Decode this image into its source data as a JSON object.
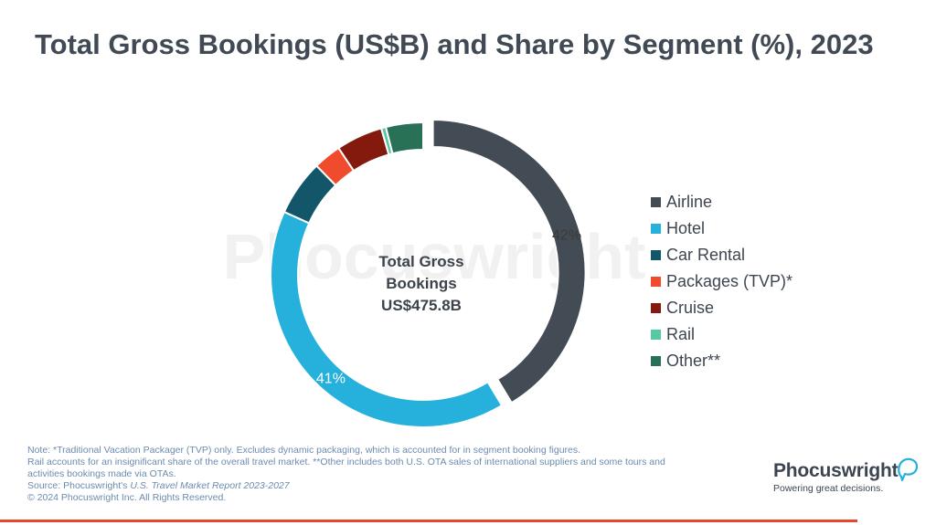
{
  "title": "Total Gross Bookings (US$B) and Share by Segment (%), 2023",
  "watermark": "Phocuswright",
  "center_label": [
    "Total Gross",
    "Bookings",
    "US$475.8B"
  ],
  "chart_data": {
    "type": "pie",
    "title": "Total Gross Bookings (US$B) and Share by Segment (%), 2023",
    "total_label": "US$475.8B",
    "unit": "%",
    "categories": [
      "Airline",
      "Hotel",
      "Car Rental",
      "Packages (TVP)*",
      "Cruise",
      "Rail",
      "Other**"
    ],
    "values": [
      42,
      41,
      6,
      3,
      5,
      0.5,
      4
    ],
    "data_labels": [
      "42%",
      "41%",
      "",
      "",
      "",
      "",
      ""
    ],
    "colors": [
      "#434c55",
      "#25b1db",
      "#135669",
      "#f04b2c",
      "#84190d",
      "#57c9a2",
      "#287157"
    ],
    "exploded": "Airline",
    "legend_position": "right"
  },
  "footnotes": [
    "Note: *Traditional Vacation Packager (TVP) only. Excludes dynamic packaging, which is accounted for in segment booking figures.",
    "Rail accounts for an insignificant share of the overall travel market.  **Other includes both U.S. OTA sales of international suppliers and some tours and",
    "activities bookings made via OTAs."
  ],
  "source": {
    "prefix": "Source: Phocuswright's ",
    "report": "U.S. Travel Market Report 2023-2027",
    "copyright": "© 2024 Phocuswright Inc. All Rights Reserved."
  },
  "logo": {
    "wordmark": "Phocuswright",
    "tagline": "Powering great decisions."
  }
}
